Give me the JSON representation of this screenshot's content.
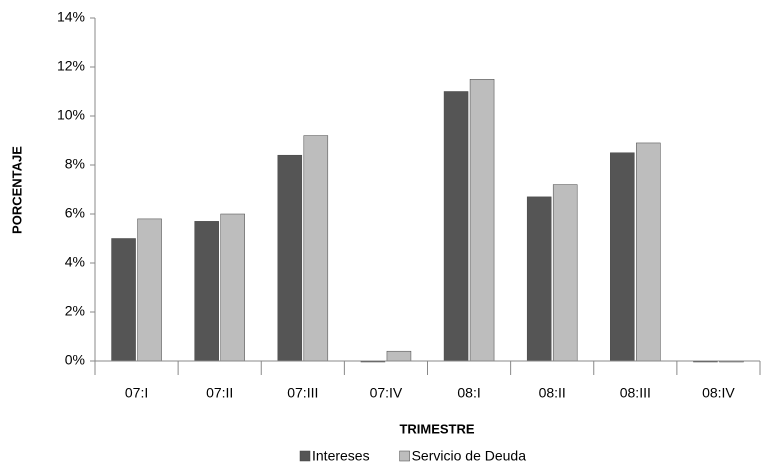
{
  "chart_data": {
    "type": "bar",
    "categories": [
      "07:I",
      "07:II",
      "07:III",
      "07:IV",
      "08:I",
      "08:II",
      "08:III",
      "08:IV"
    ],
    "series": [
      {
        "name": "Intereses",
        "color": "#555555",
        "values": [
          5.0,
          5.7,
          8.4,
          0.0,
          11.0,
          6.7,
          8.5,
          0.0
        ]
      },
      {
        "name": "Servicio de Deuda",
        "color": "#bdbdbd",
        "values": [
          5.8,
          6.0,
          9.2,
          0.4,
          11.5,
          7.2,
          8.9,
          0.0
        ]
      }
    ],
    "xlabel": "TRIMESTRE",
    "ylabel": "PORCENTAJE",
    "ylim": [
      0,
      14
    ],
    "yticks": [
      {
        "value": 0,
        "label": "0%"
      },
      {
        "value": 2,
        "label": "2%"
      },
      {
        "value": 4,
        "label": "4%"
      },
      {
        "value": 6,
        "label": "6%"
      },
      {
        "value": 8,
        "label": "8%"
      },
      {
        "value": 10,
        "label": "10%"
      },
      {
        "value": 12,
        "label": "12%"
      },
      {
        "value": 14,
        "label": "14%"
      }
    ],
    "legend": "bottom"
  }
}
